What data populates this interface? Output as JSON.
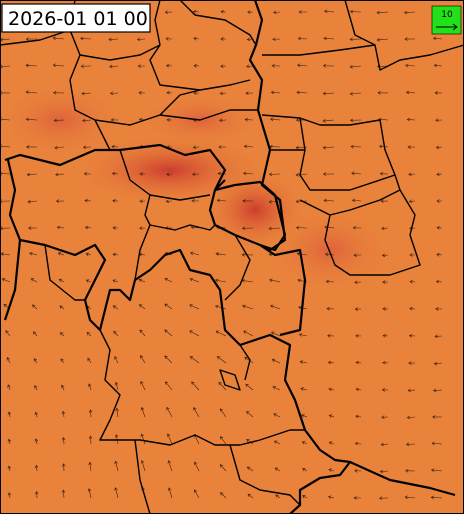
{
  "timestamp": "2026-01 01 00",
  "legend": {
    "label": "10"
  }
}
